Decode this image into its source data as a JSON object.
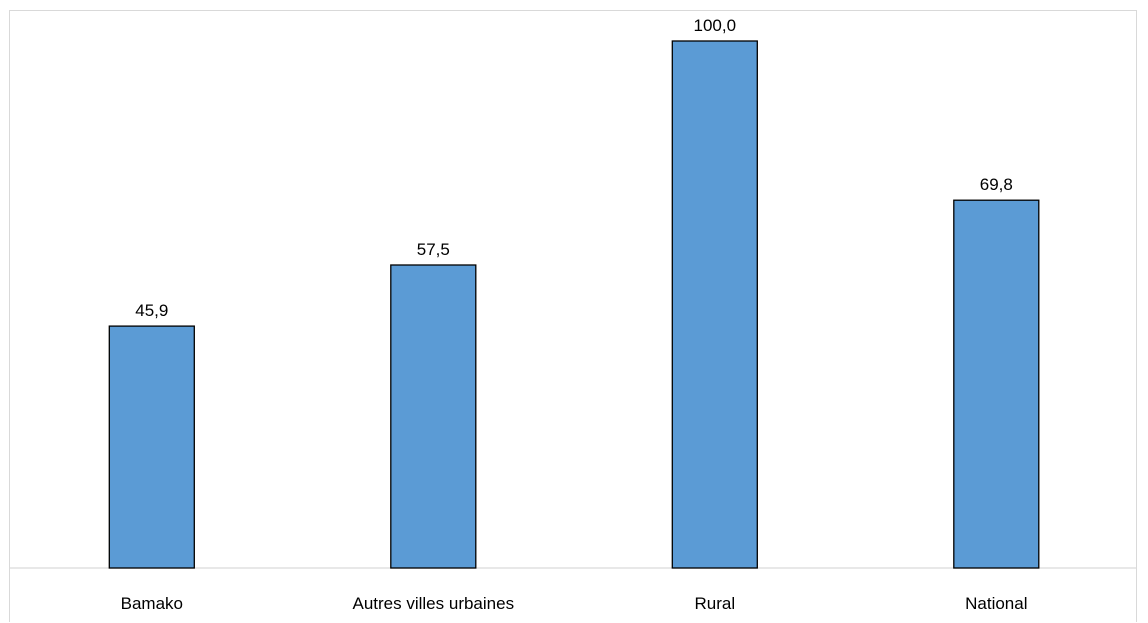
{
  "chart_data": {
    "type": "bar",
    "categories": [
      "Bamako",
      "Autres villes urbaines",
      "Rural",
      "National"
    ],
    "values": [
      45.9,
      57.5,
      100.0,
      69.8
    ],
    "data_labels": [
      "45,9",
      "57,5",
      "100,0",
      "69,8"
    ],
    "title": "",
    "xlabel": "",
    "ylabel": "",
    "ylim": [
      0,
      100
    ],
    "grid": false,
    "legend": "none",
    "colors": {
      "bar_fill": "#5b9bd5",
      "bar_stroke": "#000000",
      "axis": "#d9d9d9"
    }
  }
}
